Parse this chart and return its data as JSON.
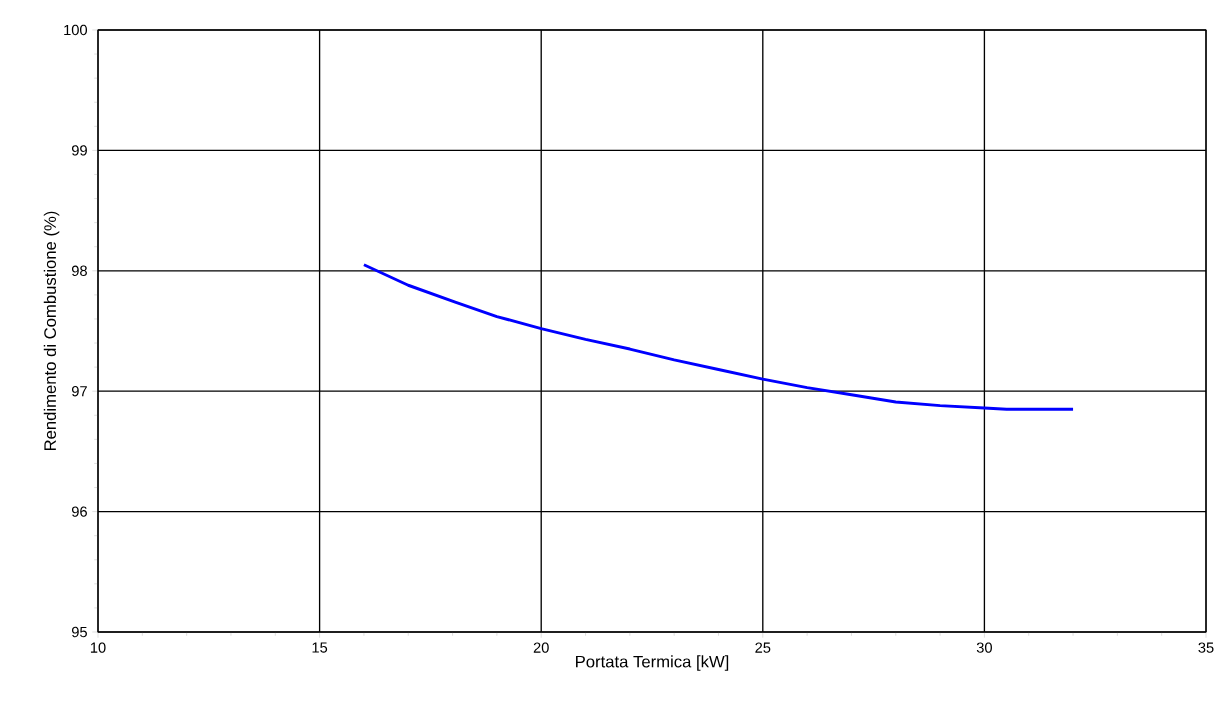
{
  "chart_data": {
    "type": "line",
    "xlabel": "Portata Termica [kW]",
    "ylabel": "Rendimento di Combustione (%)",
    "x": [
      16,
      17,
      18.06,
      19,
      20,
      21,
      22,
      23,
      24,
      25,
      26,
      27,
      28,
      29,
      30,
      30.5,
      32
    ],
    "series": [
      {
        "color": "#0000ff",
        "values": [
          98.05,
          97.88,
          97.74,
          97.62,
          97.52,
          97.43,
          97.35,
          97.26,
          97.18,
          97.1,
          97.03,
          96.97,
          96.91,
          96.88,
          96.86,
          96.85,
          96.85
        ]
      }
    ],
    "xlim": [
      10,
      35
    ],
    "ylim": [
      95,
      100
    ],
    "xticks": [
      10,
      15,
      20,
      25,
      30,
      35
    ],
    "yticks": [
      95,
      96,
      97,
      98,
      99,
      100
    ],
    "grid": true,
    "marker": "none",
    "line_style": "solid"
  }
}
